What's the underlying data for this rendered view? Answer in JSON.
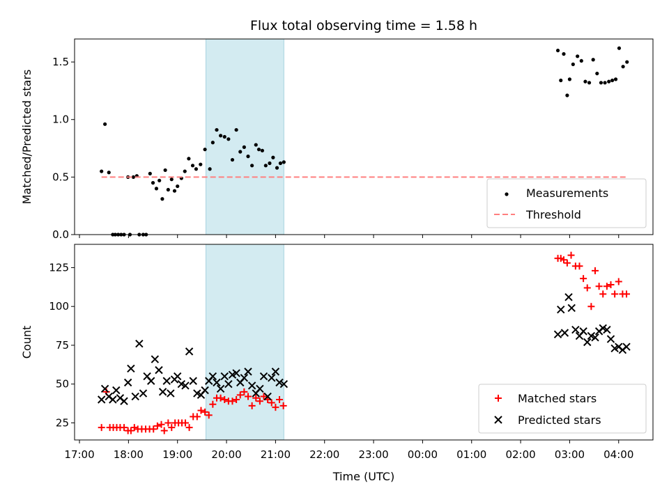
{
  "chart_data": {
    "type": "scatter",
    "title": "Flux total observing time = 1.58 h",
    "xlabel": "Time (UTC)",
    "x_unit": "hours since 17:00 UTC",
    "xlim": [
      -0.1,
      11.7
    ],
    "xticks": [
      0,
      1,
      2,
      3,
      4,
      5,
      6,
      7,
      8,
      9,
      10,
      11
    ],
    "xtick_labels": [
      "17:00",
      "18:00",
      "19:00",
      "20:00",
      "21:00",
      "22:00",
      "23:00",
      "00:00",
      "01:00",
      "02:00",
      "03:00",
      "04:00"
    ],
    "shaded_span": [
      2.58,
      4.17
    ],
    "shade_color": "#d3ebf1",
    "panels": [
      {
        "ylabel": "Matched/Predicted stars",
        "ylim": [
          0,
          1.7
        ],
        "yticks": [
          0.0,
          0.5,
          1.0,
          1.5
        ],
        "ytick_labels": [
          "0.0",
          "0.5",
          "1.0",
          "1.5"
        ],
        "legend": [
          "Measurements",
          "Threshold"
        ],
        "legend_position": "lower right",
        "series": [
          {
            "name": "Measurements",
            "marker": "dot",
            "color": "#000000",
            "x": [
              0.45,
              0.52,
              0.6,
              0.68,
              0.73,
              0.79,
              0.85,
              0.91,
              0.99,
              1.03,
              1.1,
              1.17,
              1.22,
              1.3,
              1.36,
              1.44,
              1.5,
              1.57,
              1.63,
              1.69,
              1.75,
              1.81,
              1.88,
              1.94,
              2.0,
              2.08,
              2.15,
              2.23,
              2.31,
              2.38,
              2.47,
              2.56,
              2.66,
              2.72,
              2.8,
              2.88,
              2.96,
              3.04,
              3.12,
              3.2,
              3.28,
              3.36,
              3.44,
              3.52,
              3.6,
              3.66,
              3.73,
              3.8,
              3.88,
              3.95,
              4.03,
              4.1,
              4.17,
              9.76,
              9.82,
              9.88,
              9.95,
              10.0,
              10.07,
              10.16,
              10.24,
              10.32,
              10.4,
              10.48,
              10.56,
              10.64,
              10.72,
              10.8,
              10.87,
              10.94,
              11.01,
              11.09,
              11.17
            ],
            "y": [
              0.55,
              0.96,
              0.54,
              0.0,
              0.0,
              0.0,
              0.0,
              0.0,
              0.5,
              0.0,
              0.5,
              0.51,
              0.0,
              0.0,
              0.0,
              0.53,
              0.45,
              0.4,
              0.47,
              0.31,
              0.56,
              0.39,
              0.48,
              0.38,
              0.42,
              0.49,
              0.55,
              0.66,
              0.6,
              0.57,
              0.61,
              0.74,
              0.57,
              0.8,
              0.91,
              0.86,
              0.85,
              0.83,
              0.65,
              0.91,
              0.72,
              0.76,
              0.68,
              0.6,
              0.78,
              0.74,
              0.73,
              0.6,
              0.62,
              0.67,
              0.58,
              0.62,
              0.63,
              1.6,
              1.34,
              1.57,
              1.21,
              1.35,
              1.48,
              1.55,
              1.51,
              1.33,
              1.32,
              1.52,
              1.4,
              1.32,
              1.32,
              1.33,
              1.34,
              1.35,
              1.62,
              1.46,
              1.5
            ]
          },
          {
            "name": "Threshold",
            "style": "dashed",
            "color": "#ff7f7f",
            "x": [
              0.45,
              11.17
            ],
            "y": [
              0.5,
              0.5
            ]
          }
        ]
      },
      {
        "ylabel": "Count",
        "ylim": [
          14,
          140
        ],
        "yticks": [
          25,
          50,
          75,
          100,
          125
        ],
        "ytick_labels": [
          "25",
          "50",
          "75",
          "100",
          "125"
        ],
        "legend": [
          "Matched stars",
          "Predicted stars"
        ],
        "legend_position": "lower right",
        "series": [
          {
            "name": "Matched stars",
            "marker": "plus",
            "color": "#ff0000",
            "x": [
              0.45,
              0.55,
              0.62,
              0.69,
              0.76,
              0.83,
              0.91,
              0.99,
              1.05,
              1.12,
              1.19,
              1.27,
              1.35,
              1.43,
              1.51,
              1.59,
              1.67,
              1.73,
              1.81,
              1.88,
              1.95,
              2.02,
              2.09,
              2.16,
              2.24,
              2.32,
              2.4,
              2.48,
              2.56,
              2.64,
              2.72,
              2.8,
              2.88,
              2.96,
              3.04,
              3.12,
              3.2,
              3.28,
              3.36,
              3.44,
              3.52,
              3.6,
              3.68,
              3.76,
              3.84,
              3.92,
              4.0,
              4.08,
              4.16,
              9.76,
              9.82,
              9.88,
              9.95,
              10.03,
              10.12,
              10.2,
              10.28,
              10.36,
              10.44,
              10.52,
              10.6,
              10.68,
              10.76,
              10.84,
              10.92,
              11.0,
              11.08,
              11.16
            ],
            "y": [
              22,
              45,
              22,
              22,
              22,
              22,
              22,
              20,
              20,
              22,
              21,
              21,
              21,
              21,
              21,
              23,
              24,
              20,
              25,
              22,
              25,
              25,
              25,
              25,
              22,
              29,
              29,
              33,
              32,
              30,
              37,
              41,
              41,
              40,
              39,
              39,
              40,
              43,
              45,
              42,
              36,
              41,
              39,
              42,
              40,
              38,
              35,
              40,
              36,
              131,
              131,
              130,
              128,
              133,
              126,
              126,
              118,
              112,
              100,
              123,
              113,
              108,
              113,
              114,
              108,
              116,
              108,
              108
            ]
          },
          {
            "name": "Predicted stars",
            "marker": "x",
            "color": "#000000",
            "x": [
              0.45,
              0.52,
              0.6,
              0.68,
              0.75,
              0.83,
              0.91,
              0.99,
              1.05,
              1.14,
              1.22,
              1.3,
              1.38,
              1.46,
              1.54,
              1.62,
              1.7,
              1.78,
              1.86,
              1.94,
              2.0,
              2.08,
              2.16,
              2.24,
              2.32,
              2.4,
              2.48,
              2.56,
              2.64,
              2.72,
              2.8,
              2.88,
              2.96,
              3.04,
              3.12,
              3.2,
              3.28,
              3.36,
              3.44,
              3.52,
              3.6,
              3.68,
              3.76,
              3.84,
              3.92,
              4.0,
              4.08,
              4.17,
              9.76,
              9.82,
              9.9,
              9.98,
              10.04,
              10.12,
              10.2,
              10.28,
              10.36,
              10.44,
              10.52,
              10.6,
              10.68,
              10.76,
              10.84,
              10.92,
              11.0,
              11.08,
              11.16
            ],
            "y": [
              40,
              47,
              42,
              40,
              46,
              41,
              39,
              51,
              60,
              42,
              76,
              44,
              55,
              52,
              66,
              59,
              45,
              52,
              44,
              53,
              55,
              50,
              49,
              71,
              52,
              44,
              43,
              46,
              52,
              55,
              51,
              47,
              55,
              50,
              56,
              57,
              51,
              54,
              58,
              49,
              44,
              47,
              55,
              42,
              54,
              58,
              51,
              50,
              82,
              98,
              83,
              106,
              99,
              85,
              81,
              84,
              77,
              81,
              80,
              84,
              86,
              85,
              79,
              73,
              74,
              72,
              74
            ]
          }
        ]
      }
    ]
  }
}
